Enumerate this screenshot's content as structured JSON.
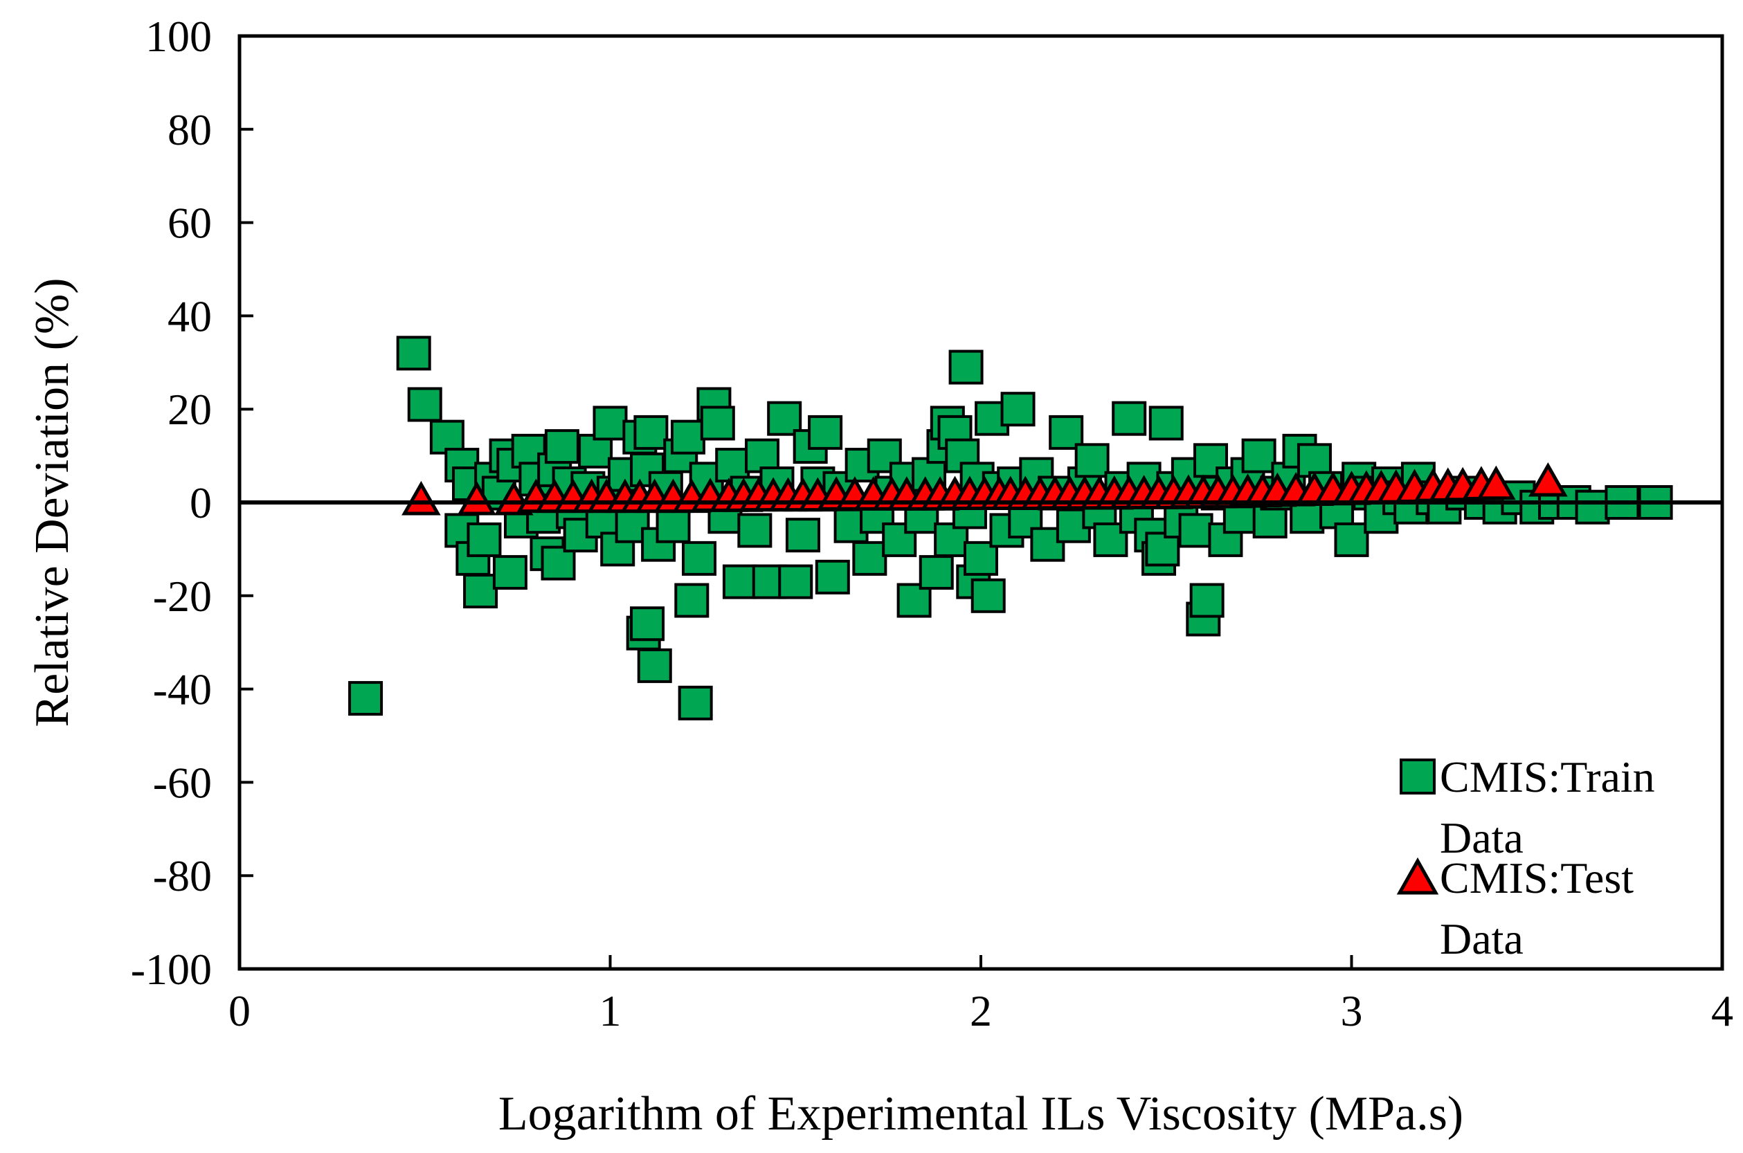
{
  "chart_data": {
    "type": "scatter",
    "title": "",
    "xlabel": "Logarithm of Experimental ILs Viscosity (MPa.s)",
    "ylabel": "Relative Deviation (%)",
    "xlim": [
      0,
      4
    ],
    "ylim": [
      -100,
      100
    ],
    "xticks": [
      0,
      1,
      2,
      3,
      4
    ],
    "yticks": [
      100,
      80,
      60,
      40,
      20,
      0,
      -20,
      -40,
      -60,
      -80,
      -100
    ],
    "x_tick_labels": [
      "0",
      "1",
      "2",
      "3",
      "4"
    ],
    "y_tick_labels": [
      "100",
      "80",
      "60",
      "40",
      "20",
      "0",
      "-20",
      "-40",
      "-60",
      "-80",
      "-100"
    ],
    "grid": false,
    "zero_line": true,
    "legend_position": "bottom-right",
    "legend": [
      {
        "name_line1": "CMIS:Train",
        "name_line2": "Data",
        "marker": "square"
      },
      {
        "name_line1": "CMIS:Test",
        "name_line2": "Data",
        "marker": "triangle"
      }
    ],
    "colors": {
      "train_fill": "#00A651",
      "train_edge": "#000000",
      "test_fill": "#FF0000",
      "test_edge": "#000000",
      "axis": "#000000"
    },
    "series": [
      {
        "name": "CMIS:Train Data",
        "marker": "square",
        "points": [
          [
            0.34,
            -42
          ],
          [
            0.47,
            32
          ],
          [
            0.5,
            21
          ],
          [
            0.56,
            14
          ],
          [
            0.6,
            -6
          ],
          [
            0.6,
            8
          ],
          [
            0.62,
            4
          ],
          [
            0.63,
            -12
          ],
          [
            0.65,
            -19
          ],
          [
            0.66,
            -8
          ],
          [
            0.68,
            5
          ],
          [
            0.7,
            2
          ],
          [
            0.72,
            10
          ],
          [
            0.73,
            -15
          ],
          [
            0.74,
            8
          ],
          [
            0.76,
            -4
          ],
          [
            0.78,
            11
          ],
          [
            0.8,
            5
          ],
          [
            0.82,
            -3
          ],
          [
            0.83,
            -11
          ],
          [
            0.85,
            7
          ],
          [
            0.86,
            -13
          ],
          [
            0.87,
            12
          ],
          [
            0.89,
            4
          ],
          [
            0.9,
            -2
          ],
          [
            0.92,
            -7
          ],
          [
            0.94,
            3
          ],
          [
            0.96,
            11
          ],
          [
            0.98,
            -4
          ],
          [
            1.0,
            17
          ],
          [
            1.01,
            2
          ],
          [
            1.02,
            -10
          ],
          [
            1.04,
            6
          ],
          [
            1.06,
            -5
          ],
          [
            1.08,
            14
          ],
          [
            1.09,
            -28
          ],
          [
            1.1,
            -26
          ],
          [
            1.1,
            7
          ],
          [
            1.11,
            15
          ],
          [
            1.12,
            -35
          ],
          [
            1.13,
            -9
          ],
          [
            1.15,
            3
          ],
          [
            1.17,
            -5
          ],
          [
            1.19,
            10
          ],
          [
            1.21,
            14
          ],
          [
            1.22,
            -21
          ],
          [
            1.23,
            -43
          ],
          [
            1.24,
            -12
          ],
          [
            1.26,
            5
          ],
          [
            1.28,
            21
          ],
          [
            1.29,
            17
          ],
          [
            1.31,
            -3
          ],
          [
            1.33,
            8
          ],
          [
            1.35,
            -17
          ],
          [
            1.37,
            2
          ],
          [
            1.39,
            -6
          ],
          [
            1.41,
            10
          ],
          [
            1.43,
            -17
          ],
          [
            1.45,
            4
          ],
          [
            1.47,
            18
          ],
          [
            1.5,
            -17
          ],
          [
            1.52,
            -7
          ],
          [
            1.54,
            12
          ],
          [
            1.56,
            4
          ],
          [
            1.58,
            15
          ],
          [
            1.6,
            -16
          ],
          [
            1.62,
            3
          ],
          [
            1.65,
            -5
          ],
          [
            1.68,
            8
          ],
          [
            1.7,
            -12
          ],
          [
            1.72,
            -3
          ],
          [
            1.74,
            10
          ],
          [
            1.76,
            2
          ],
          [
            1.78,
            -8
          ],
          [
            1.8,
            5
          ],
          [
            1.82,
            -21
          ],
          [
            1.84,
            -3
          ],
          [
            1.86,
            6
          ],
          [
            1.88,
            -15
          ],
          [
            1.9,
            12
          ],
          [
            1.91,
            17
          ],
          [
            1.92,
            -8
          ],
          [
            1.93,
            15
          ],
          [
            1.95,
            10
          ],
          [
            1.96,
            29
          ],
          [
            1.97,
            -2
          ],
          [
            1.98,
            -17
          ],
          [
            1.99,
            5
          ],
          [
            2.0,
            -12
          ],
          [
            2.02,
            -20
          ],
          [
            2.03,
            18
          ],
          [
            2.05,
            3
          ],
          [
            2.07,
            -6
          ],
          [
            2.09,
            4
          ],
          [
            2.1,
            20
          ],
          [
            2.12,
            -4
          ],
          [
            2.15,
            6
          ],
          [
            2.18,
            -9
          ],
          [
            2.2,
            2
          ],
          [
            2.23,
            15
          ],
          [
            2.25,
            -5
          ],
          [
            2.28,
            4
          ],
          [
            2.3,
            9
          ],
          [
            2.32,
            -2
          ],
          [
            2.35,
            -8
          ],
          [
            2.38,
            3
          ],
          [
            2.4,
            18
          ],
          [
            2.42,
            -3
          ],
          [
            2.44,
            5
          ],
          [
            2.46,
            -7
          ],
          [
            2.48,
            -12
          ],
          [
            2.49,
            -10
          ],
          [
            2.5,
            17
          ],
          [
            2.52,
            3
          ],
          [
            2.54,
            -4
          ],
          [
            2.56,
            6
          ],
          [
            2.58,
            -6
          ],
          [
            2.6,
            -25
          ],
          [
            2.61,
            -21
          ],
          [
            2.62,
            9
          ],
          [
            2.64,
            2
          ],
          [
            2.66,
            -8
          ],
          [
            2.68,
            4
          ],
          [
            2.7,
            -3
          ],
          [
            2.72,
            6
          ],
          [
            2.75,
            10
          ],
          [
            2.78,
            -4
          ],
          [
            2.8,
            2
          ],
          [
            2.83,
            5
          ],
          [
            2.86,
            11
          ],
          [
            2.88,
            -3
          ],
          [
            2.9,
            9
          ],
          [
            2.93,
            3
          ],
          [
            2.96,
            -2
          ],
          [
            3.0,
            -8
          ],
          [
            3.02,
            5
          ],
          [
            3.05,
            2
          ],
          [
            3.08,
            -3
          ],
          [
            3.1,
            4
          ],
          [
            3.13,
            1
          ],
          [
            3.16,
            -1
          ],
          [
            3.18,
            5
          ],
          [
            3.22,
            1
          ],
          [
            3.25,
            -1
          ],
          [
            3.3,
            2
          ],
          [
            3.35,
            0
          ],
          [
            3.4,
            -1
          ],
          [
            3.45,
            1
          ],
          [
            3.5,
            -1
          ],
          [
            3.55,
            0
          ],
          [
            3.6,
            0
          ],
          [
            3.65,
            -1
          ],
          [
            3.73,
            0
          ],
          [
            3.82,
            0
          ]
        ]
      },
      {
        "name": "CMIS:Test Data",
        "marker": "triangle",
        "points": [
          [
            0.49,
            0
          ],
          [
            0.64,
            0
          ],
          [
            0.74,
            0
          ],
          [
            0.8,
            0.5
          ],
          [
            0.85,
            0.5
          ],
          [
            0.9,
            0.5
          ],
          [
            0.95,
            0.5
          ],
          [
            0.99,
            0.5
          ],
          [
            1.04,
            0.5
          ],
          [
            1.08,
            0.5
          ],
          [
            1.12,
            0.5
          ],
          [
            1.17,
            0.5
          ],
          [
            1.22,
            0.5
          ],
          [
            1.27,
            0.7
          ],
          [
            1.32,
            0.7
          ],
          [
            1.36,
            0.7
          ],
          [
            1.4,
            0.8
          ],
          [
            1.44,
            0.8
          ],
          [
            1.48,
            0.8
          ],
          [
            1.52,
            0.8
          ],
          [
            1.56,
            0.8
          ],
          [
            1.61,
            1.0
          ],
          [
            1.66,
            1.0
          ],
          [
            1.71,
            1.0
          ],
          [
            1.76,
            1.0
          ],
          [
            1.8,
            1.0
          ],
          [
            1.85,
            1.0
          ],
          [
            1.89,
            1.0
          ],
          [
            1.93,
            1.1
          ],
          [
            1.97,
            1.1
          ],
          [
            2.01,
            1.1
          ],
          [
            2.05,
            1.1
          ],
          [
            2.08,
            1.1
          ],
          [
            2.12,
            1.1
          ],
          [
            2.16,
            1.1
          ],
          [
            2.2,
            1.2
          ],
          [
            2.24,
            1.2
          ],
          [
            2.28,
            1.2
          ],
          [
            2.32,
            1.2
          ],
          [
            2.36,
            1.2
          ],
          [
            2.4,
            1.3
          ],
          [
            2.44,
            1.3
          ],
          [
            2.48,
            1.3
          ],
          [
            2.52,
            1.3
          ],
          [
            2.56,
            1.4
          ],
          [
            2.6,
            1.4
          ],
          [
            2.64,
            1.5
          ],
          [
            2.68,
            1.5
          ],
          [
            2.72,
            1.6
          ],
          [
            2.76,
            1.7
          ],
          [
            2.8,
            1.8
          ],
          [
            2.85,
            1.9
          ],
          [
            2.9,
            2.0
          ],
          [
            2.95,
            2.1
          ],
          [
            3.0,
            2.2
          ],
          [
            3.04,
            2.3
          ],
          [
            3.08,
            2.4
          ],
          [
            3.12,
            2.5
          ],
          [
            3.17,
            2.6
          ],
          [
            3.22,
            2.8
          ],
          [
            3.26,
            2.9
          ],
          [
            3.3,
            3.0
          ],
          [
            3.35,
            3.2
          ],
          [
            3.39,
            3.3
          ],
          [
            3.53,
            4.0
          ]
        ]
      }
    ]
  }
}
